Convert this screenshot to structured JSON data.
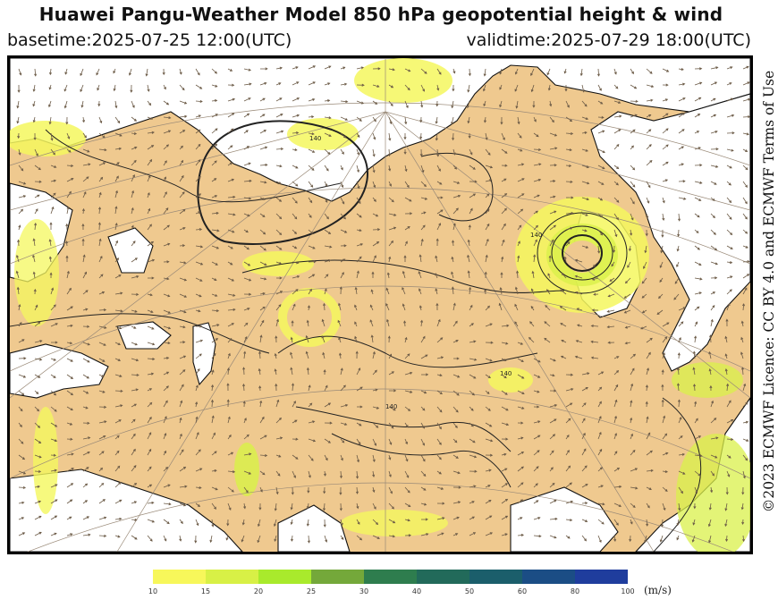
{
  "header": {
    "title": "Huawei Pangu-Weather Model 850 hPa geopotential height & wind",
    "basetime": "basetime:2025-07-25 12:00(UTC)",
    "validtime": "validtime:2025-07-29 18:00(UTC)"
  },
  "map": {
    "contour_labels": [
      "140",
      "140",
      "140",
      "140"
    ],
    "colors": {
      "land": "#efc98f",
      "ocean": "#ffffff",
      "coastline": "#111111",
      "height_contour": "#222222",
      "wind_arrow": "#6b5a46",
      "graticule": "#9a8a78",
      "wind_10_15": "#f4f75e",
      "wind_15_20": "#d9f04a"
    }
  },
  "colorbar": {
    "unit": "(m/s)",
    "ticks": [
      "10",
      "15",
      "20",
      "25",
      "30",
      "40",
      "50",
      "60",
      "80",
      "100"
    ],
    "colors": [
      "#f7f75a",
      "#d8f046",
      "#a9ea2c",
      "#74a83a",
      "#2e7d4e",
      "#226a5a",
      "#1b5e6b",
      "#1b4d85",
      "#1f3d9d",
      "#2838b0"
    ]
  },
  "licence": "©2023 ECMWF Licence: CC BY 4.0 and ECMWF Terms of Use"
}
